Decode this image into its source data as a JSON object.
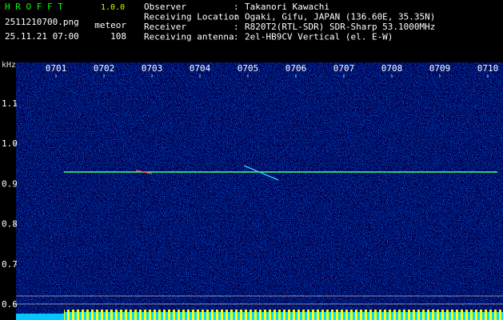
{
  "header": {
    "app_name": "H R O F F T",
    "version": "1.0.0",
    "filename": "2511210700.png",
    "datetime": "25.11.21 07:00",
    "meteor_label": "meteor",
    "meteor_count": "108"
  },
  "info": {
    "separator": ":",
    "rows": [
      {
        "label": "Observer",
        "value": "Takanori Kawachi"
      },
      {
        "label": "Receiving Location",
        "value": "Ogaki, Gifu, JAPAN (136.60E, 35.35N)"
      },
      {
        "label": "Receiver",
        "value": "R820T2(RTL-SDR) SDR-Sharp 53.1000MHz"
      },
      {
        "label": "Receiving antenna",
        "value": "2el-HB9CV Vertical (el. E-W)"
      }
    ]
  },
  "y_axis": {
    "unit": "kHz",
    "ticks": [
      "1.1",
      "1.0",
      "0.9",
      "0.8",
      "0.7",
      "0.6"
    ]
  },
  "x_axis": {
    "ticks": [
      "0701",
      "0702",
      "0703",
      "0704",
      "0705",
      "0706",
      "0707",
      "0708",
      "0709",
      "0710"
    ]
  }
}
